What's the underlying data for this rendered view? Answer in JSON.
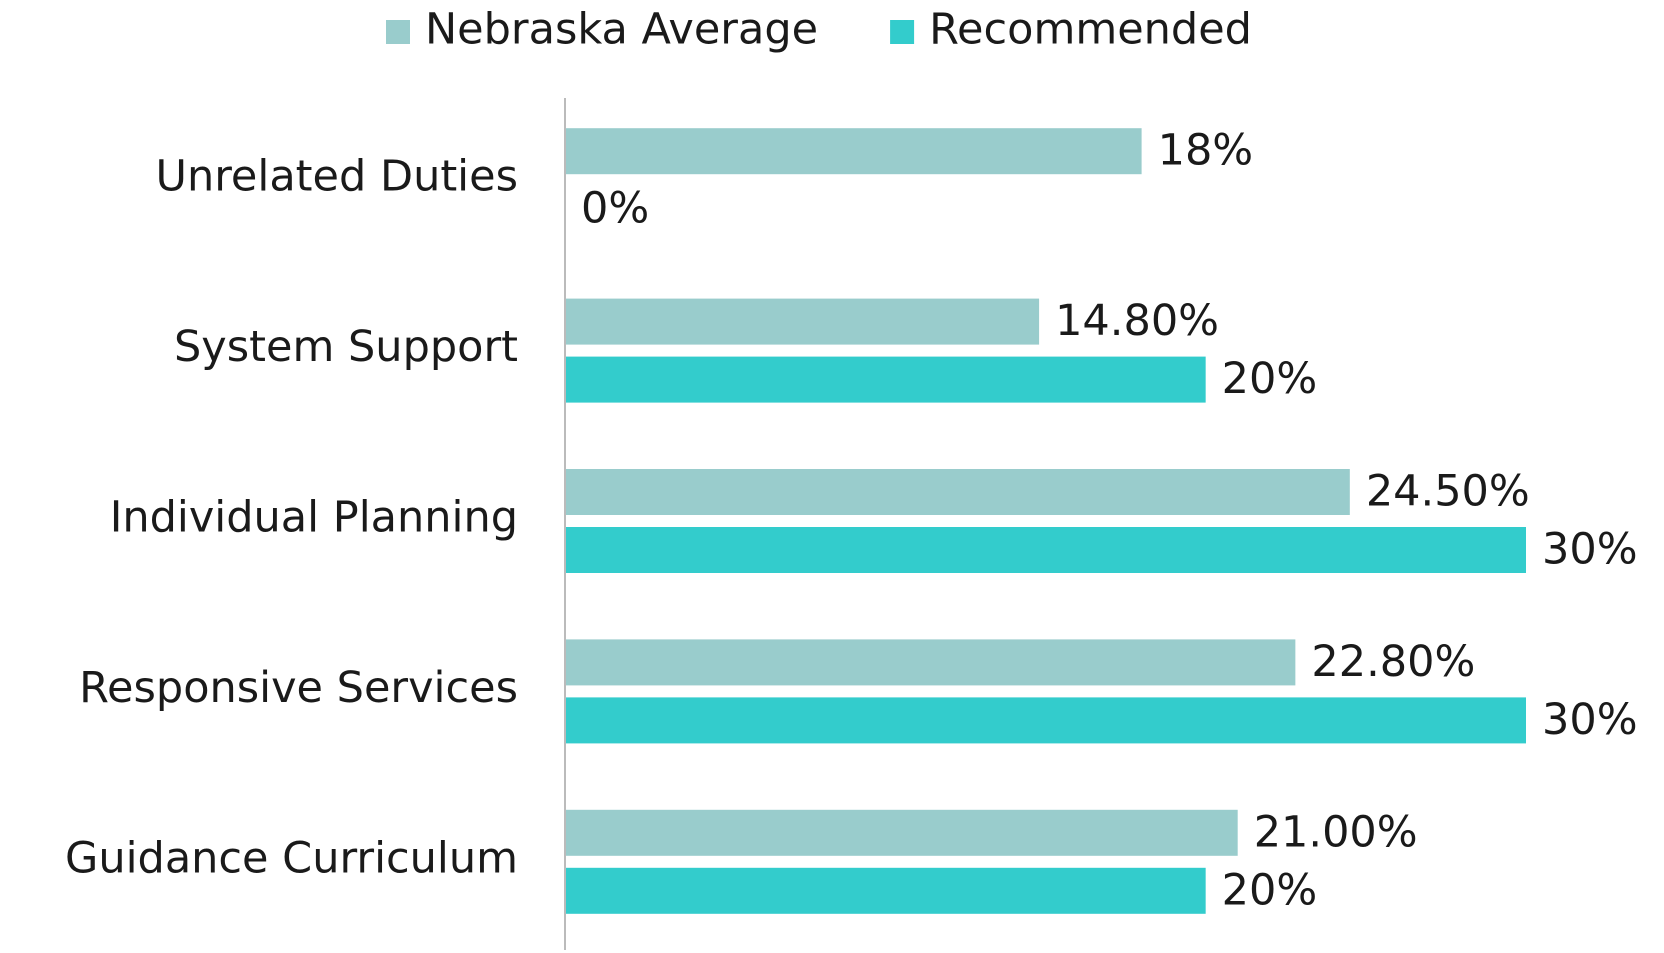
{
  "chart_data": {
    "type": "hbar",
    "categories": [
      "Unrelated Duties",
      "System Support",
      "Individual Planning",
      "Responsive Services",
      "Guidance Curriculum"
    ],
    "series": [
      {
        "name": "Nebraska Average",
        "color": "#99cccc",
        "values": [
          18,
          14.8,
          24.5,
          22.8,
          21
        ],
        "value_labels": [
          "18%",
          "14.80%",
          "24.50%",
          "22.80%",
          "21.00%"
        ]
      },
      {
        "name": "Recommended",
        "color": "#33cccc",
        "values": [
          0,
          20,
          30,
          30,
          20
        ],
        "value_labels": [
          "0%",
          "20%",
          "30%",
          "30%",
          "20%"
        ]
      }
    ],
    "xlim": [
      0,
      30
    ],
    "legend": "top"
  }
}
